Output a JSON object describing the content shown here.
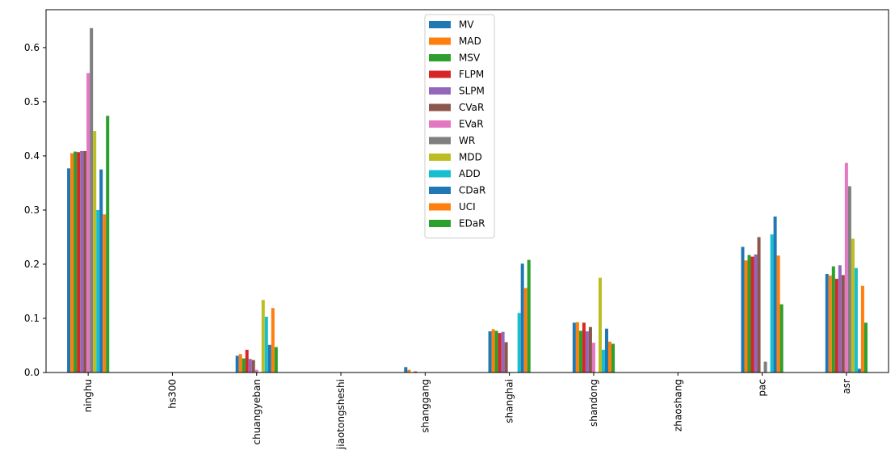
{
  "chart_data": {
    "type": "bar",
    "title": "",
    "xlabel": "",
    "ylabel": "",
    "ylim": [
      0,
      0.67
    ],
    "yticks": [
      "0.0",
      "0.1",
      "0.2",
      "0.3",
      "0.4",
      "0.5",
      "0.6"
    ],
    "grid": false,
    "legend_position": "top-center",
    "categories": [
      "ninghu",
      "hs300",
      "chuangyeban",
      "jiaotongsheshi",
      "shanggang",
      "shanghai",
      "shandong",
      "zhaoshang",
      "pac",
      "asr"
    ],
    "series": [
      {
        "name": "MV",
        "color": "#1f77b4",
        "values": [
          0.377,
          0,
          0.031,
          0,
          0.01,
          0.076,
          0.092,
          0,
          0.232,
          0.182
        ]
      },
      {
        "name": "MAD",
        "color": "#ff7f0e",
        "values": [
          0.405,
          0,
          0.034,
          0,
          0.005,
          0.08,
          0.093,
          0,
          0.207,
          0.179
        ]
      },
      {
        "name": "MSV",
        "color": "#2ca02c",
        "values": [
          0.408,
          0,
          0.026,
          0,
          0.0,
          0.077,
          0.077,
          0,
          0.217,
          0.196
        ]
      },
      {
        "name": "FLPM",
        "color": "#d62728",
        "values": [
          0.407,
          0,
          0.042,
          0,
          0.002,
          0.073,
          0.092,
          0,
          0.214,
          0.173
        ]
      },
      {
        "name": "SLPM",
        "color": "#9467bd",
        "values": [
          0.409,
          0,
          0.025,
          0,
          0.0,
          0.075,
          0.076,
          0,
          0.218,
          0.198
        ]
      },
      {
        "name": "CVaR",
        "color": "#8c564b",
        "values": [
          0.409,
          0,
          0.023,
          0,
          0.0,
          0.056,
          0.084,
          0,
          0.25,
          0.18
        ]
      },
      {
        "name": "EVaR",
        "color": "#e377c2",
        "values": [
          0.553,
          0,
          0.005,
          0,
          0.0,
          0.0,
          0.055,
          0,
          0.0,
          0.387
        ]
      },
      {
        "name": "WR",
        "color": "#7f7f7f",
        "values": [
          0.636,
          0,
          0.0,
          0,
          0.0,
          0.0,
          0.0,
          0,
          0.02,
          0.344
        ]
      },
      {
        "name": "MDD",
        "color": "#bcbd22",
        "values": [
          0.446,
          0,
          0.134,
          0,
          0.0,
          0.0,
          0.175,
          0,
          0.0,
          0.247
        ]
      },
      {
        "name": "ADD",
        "color": "#17becf",
        "values": [
          0.3,
          0,
          0.103,
          0,
          0.0,
          0.11,
          0.042,
          0,
          0.255,
          0.193
        ]
      },
      {
        "name": "CDaR",
        "color": "#1f77b4",
        "values": [
          0.375,
          0,
          0.051,
          0,
          0.0,
          0.201,
          0.081,
          0,
          0.288,
          0.007
        ]
      },
      {
        "name": "UCI",
        "color": "#ff7f0e",
        "values": [
          0.292,
          0,
          0.119,
          0,
          0.0,
          0.156,
          0.057,
          0,
          0.216,
          0.16
        ]
      },
      {
        "name": "EDaR",
        "color": "#2ca02c",
        "values": [
          0.474,
          0,
          0.047,
          0,
          0.0,
          0.208,
          0.053,
          0,
          0.126,
          0.092
        ]
      }
    ]
  }
}
